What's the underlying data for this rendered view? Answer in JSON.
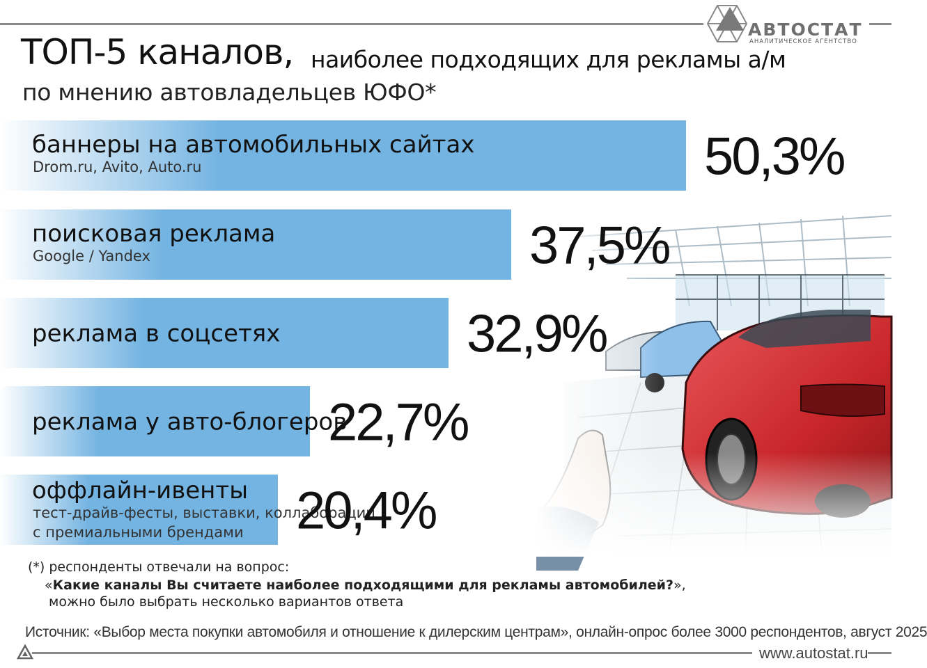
{
  "header": {
    "title_bold": "ТОП-5 каналов,",
    "title_rest": "наиболее подходящих для рекламы а/м",
    "subtitle": "по мнению автовладельцев ЮФО*"
  },
  "logo": {
    "name": "АВТОСТАТ",
    "tagline": "АНАЛИТИЧЕСКОЕ АГЕНТСТВО"
  },
  "colors": {
    "bar_fill": "#74b4e2",
    "bar_fade": "#ffffff",
    "rule": "#8a8a8a",
    "car_red": "#c8262a"
  },
  "chart_data": {
    "type": "bar",
    "orientation": "horizontal",
    "categories": [
      "баннеры на автомобильных сайтах",
      "поисковая реклама",
      "реклама в соцсетях",
      "реклама у авто-блогеров",
      "оффлайн-ивенты"
    ],
    "sublabels": [
      [
        "Drom.ru, Avito, Auto.ru"
      ],
      [
        "Google / Yandex"
      ],
      [],
      [],
      [
        "тест-драйв-фесты, выставки, коллаборации",
        "с премиальными брендами"
      ]
    ],
    "values": [
      50.3,
      37.5,
      32.9,
      22.7,
      20.4
    ],
    "value_labels": [
      "50,3%",
      "37,5%",
      "32,9%",
      "22,7%",
      "20,4%"
    ],
    "unit": "%",
    "grid": false,
    "legend": "none"
  },
  "footnote": {
    "line1": "(*) респонденты отвечали на вопрос:",
    "line2_open": "«",
    "line2_question": "Какие каналы Вы считаете наиболее подходящими для рекламы автомобилей?",
    "line2_close": "»,",
    "line3": "можно было выбрать несколько вариантов ответа"
  },
  "source": "Источник:  «Выбор места покупки автомобиля и отношение к дилерским центрам», онлайн-опрос более 3000 респондентов, август 2025",
  "website": "www.autostat.ru",
  "illustration_icon": "car-showroom-illustration"
}
